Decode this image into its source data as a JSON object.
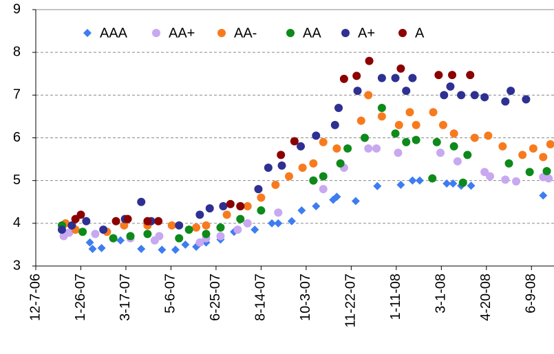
{
  "chart_data": {
    "type": "scatter",
    "legend": "top",
    "grid": true,
    "ylim": [
      3,
      9
    ],
    "yticks": [
      3,
      4,
      5,
      6,
      7,
      8,
      9
    ],
    "xlim": [
      "2006-12-07",
      "2008-07-04"
    ],
    "xticks": [
      {
        "value": "2006-12-07",
        "label": "12-7-06"
      },
      {
        "value": "2007-01-26",
        "label": "1-26-07"
      },
      {
        "value": "2007-03-17",
        "label": "3-17-07"
      },
      {
        "value": "2007-05-06",
        "label": "5-6-07"
      },
      {
        "value": "2007-06-25",
        "label": "6-25-07"
      },
      {
        "value": "2007-08-14",
        "label": "8-14-07"
      },
      {
        "value": "2007-10-03",
        "label": "10-3-07"
      },
      {
        "value": "2007-11-22",
        "label": "11-22-07"
      },
      {
        "value": "2008-01-11",
        "label": "1-11-08"
      },
      {
        "value": "2008-03-01",
        "label": "3-1-08"
      },
      {
        "value": "2008-04-20",
        "label": "4-20-08"
      },
      {
        "value": "2008-06-09",
        "label": "6-9-08"
      }
    ],
    "series": [
      {
        "name": "AAA",
        "color": "#3d7df0",
        "marker": "diamond",
        "x": [
          "2007-01-05",
          "2007-02-05",
          "2007-02-08",
          "2007-02-18",
          "2007-03-11",
          "2007-04-03",
          "2007-04-26",
          "2007-05-11",
          "2007-05-22",
          "2007-06-03",
          "2007-06-14",
          "2007-06-30",
          "2007-07-15",
          "2007-08-07",
          "2007-08-26",
          "2007-09-02",
          "2007-09-17",
          "2007-09-28",
          "2007-10-14",
          "2007-11-02",
          "2007-11-06",
          "2007-11-27",
          "2007-12-21",
          "2008-01-16",
          "2008-01-29",
          "2008-02-06",
          "2008-03-07",
          "2008-03-14",
          "2008-03-23",
          "2008-04-03",
          "2008-06-22"
        ],
        "values": [
          3.85,
          3.55,
          3.4,
          3.42,
          3.6,
          3.4,
          3.38,
          3.38,
          3.5,
          3.45,
          3.55,
          3.62,
          3.8,
          3.85,
          4.0,
          4.0,
          4.05,
          4.3,
          4.4,
          4.55,
          4.62,
          4.52,
          4.87,
          4.9,
          5.0,
          5.0,
          4.93,
          4.93,
          4.88,
          4.88,
          4.65
        ]
      },
      {
        "name": "AA+",
        "color": "#c8a8f0",
        "marker": "circle",
        "x": [
          "2007-01-07",
          "2007-01-13",
          "2007-02-11",
          "2007-03-22",
          "2007-04-18",
          "2007-04-23",
          "2007-06-07",
          "2007-06-14",
          "2007-06-30",
          "2007-07-19",
          "2007-07-30",
          "2007-09-02",
          "2007-10-22",
          "2007-11-14",
          "2007-12-11",
          "2007-12-20",
          "2008-01-13",
          "2008-02-29",
          "2008-03-19",
          "2008-04-18",
          "2008-04-24",
          "2008-05-11",
          "2008-05-23",
          "2008-06-22",
          "2008-06-28"
        ],
        "values": [
          3.7,
          3.78,
          3.75,
          3.65,
          3.6,
          3.7,
          3.55,
          3.65,
          3.7,
          3.85,
          4.0,
          4.25,
          4.8,
          5.3,
          5.75,
          5.75,
          5.65,
          5.65,
          5.45,
          5.2,
          5.1,
          5.02,
          4.98,
          5.08,
          5.05
        ]
      },
      {
        "name": "AA-",
        "color": "#f77b1e",
        "marker": "circle",
        "x": [
          "2007-01-09",
          "2007-01-20",
          "2007-02-24",
          "2007-03-15",
          "2007-04-10",
          "2007-05-07",
          "2007-06-03",
          "2007-06-14",
          "2007-07-07",
          "2007-07-30",
          "2007-08-14",
          "2007-08-30",
          "2007-09-14",
          "2007-09-29",
          "2007-10-11",
          "2007-10-22",
          "2007-11-06",
          "2007-12-03",
          "2007-12-11",
          "2007-12-26",
          "2008-01-14",
          "2008-01-26",
          "2008-02-02",
          "2008-02-21",
          "2008-03-03",
          "2008-03-15",
          "2008-04-07",
          "2008-04-22",
          "2008-05-08",
          "2008-05-30",
          "2008-06-11",
          "2008-06-22",
          "2008-06-30"
        ],
        "values": [
          4.0,
          3.85,
          3.8,
          3.95,
          3.95,
          3.95,
          3.9,
          3.95,
          4.2,
          4.4,
          4.6,
          4.9,
          5.1,
          5.3,
          5.4,
          5.9,
          5.75,
          6.4,
          7.0,
          6.5,
          6.3,
          6.6,
          6.3,
          6.6,
          6.3,
          6.1,
          6.0,
          6.05,
          5.8,
          5.6,
          5.75,
          5.55,
          5.85
        ]
      },
      {
        "name": "AA",
        "color": "#0d8a1a",
        "marker": "circle",
        "x": [
          "2007-01-05",
          "2007-01-28",
          "2007-03-03",
          "2007-03-22",
          "2007-04-10",
          "2007-05-15",
          "2007-05-26",
          "2007-06-14",
          "2007-06-30",
          "2007-07-22",
          "2007-08-14",
          "2007-10-11",
          "2007-10-22",
          "2007-11-10",
          "2007-11-18",
          "2007-12-07",
          "2007-12-26",
          "2008-01-10",
          "2008-01-22",
          "2008-02-02",
          "2008-02-20",
          "2008-02-25",
          "2008-03-15",
          "2008-03-30",
          "2008-03-25",
          "2008-05-15",
          "2008-06-07",
          "2008-06-26"
        ],
        "values": [
          3.95,
          3.8,
          3.65,
          3.7,
          3.75,
          3.65,
          3.85,
          3.75,
          3.9,
          4.1,
          4.3,
          5.0,
          5.1,
          5.4,
          5.75,
          6.0,
          6.7,
          6.1,
          5.9,
          5.95,
          5.05,
          5.9,
          5.8,
          5.6,
          4.95,
          5.4,
          5.2,
          5.22
        ]
      },
      {
        "name": "A+",
        "color": "#2e3092",
        "marker": "circle",
        "x": [
          "2007-01-05",
          "2007-01-16",
          "2007-02-01",
          "2007-02-20",
          "2007-03-16",
          "2007-04-03",
          "2007-04-14",
          "2007-05-15",
          "2007-06-07",
          "2007-06-18",
          "2007-07-03",
          "2007-07-22",
          "2007-08-11",
          "2007-08-22",
          "2007-09-06",
          "2007-09-27",
          "2007-10-14",
          "2007-11-04",
          "2007-11-08",
          "2007-11-29",
          "2007-12-26",
          "2008-01-10",
          "2008-01-22",
          "2008-01-29",
          "2008-03-04",
          "2008-03-11",
          "2008-03-23",
          "2008-04-07",
          "2008-04-18",
          "2008-05-11",
          "2008-05-17",
          "2008-06-03"
        ],
        "values": [
          3.85,
          3.95,
          4.05,
          3.85,
          4.1,
          4.5,
          4.05,
          3.95,
          4.2,
          4.35,
          4.4,
          4.4,
          4.8,
          5.3,
          5.35,
          5.8,
          6.05,
          6.3,
          6.7,
          7.1,
          7.4,
          7.4,
          7.1,
          7.4,
          7.0,
          7.2,
          7.0,
          7.0,
          6.95,
          6.85,
          7.1,
          6.9
        ]
      },
      {
        "name": "A",
        "color": "#8b0000",
        "marker": "circle",
        "x": [
          "2007-01-20",
          "2007-01-26",
          "2007-03-06",
          "2007-03-19",
          "2007-04-10",
          "2007-04-22",
          "2007-07-11",
          "2007-07-22",
          "2007-09-05",
          "2007-09-20",
          "2007-11-14",
          "2007-11-28",
          "2007-12-12",
          "2008-01-16",
          "2008-02-27",
          "2008-03-13",
          "2008-04-02"
        ],
        "values": [
          4.1,
          4.2,
          4.05,
          4.1,
          4.05,
          4.05,
          4.45,
          4.4,
          5.6,
          5.92,
          7.38,
          7.45,
          7.8,
          7.62,
          7.47,
          7.47,
          7.47
        ]
      }
    ]
  }
}
